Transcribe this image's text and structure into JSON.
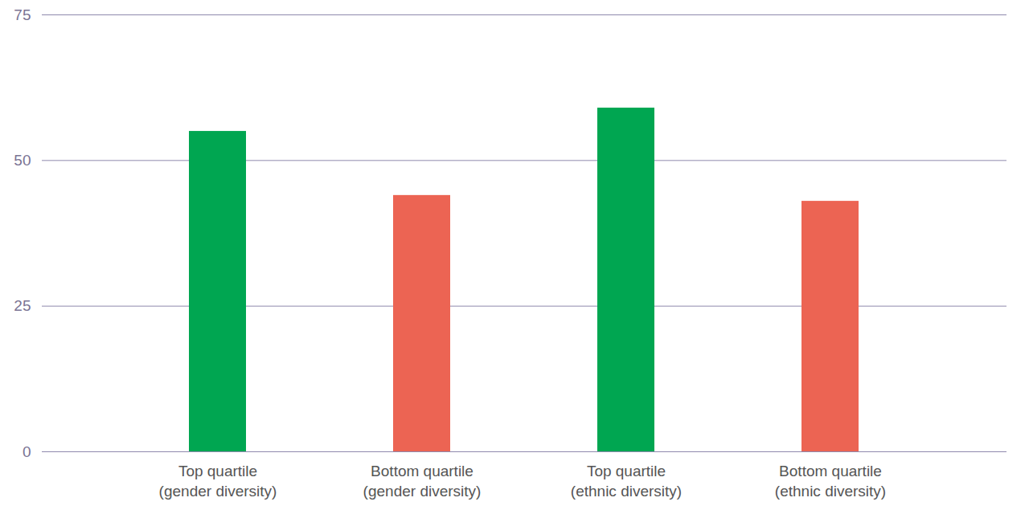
{
  "chart_data": {
    "type": "bar",
    "categories": [
      "Top quartile\n(gender diversity)",
      "Bottom quartile\n(gender diversity)",
      "Top quartile\n(ethnic diversity)",
      "Bottom quartile\n(ethnic diversity)"
    ],
    "values": [
      55,
      44,
      59,
      43
    ],
    "colors": [
      "#00a651",
      "#ec6453",
      "#00a651",
      "#ec6453"
    ],
    "ylim": [
      0,
      75
    ],
    "yticks": [
      0,
      25,
      50,
      75
    ],
    "grid": true
  }
}
